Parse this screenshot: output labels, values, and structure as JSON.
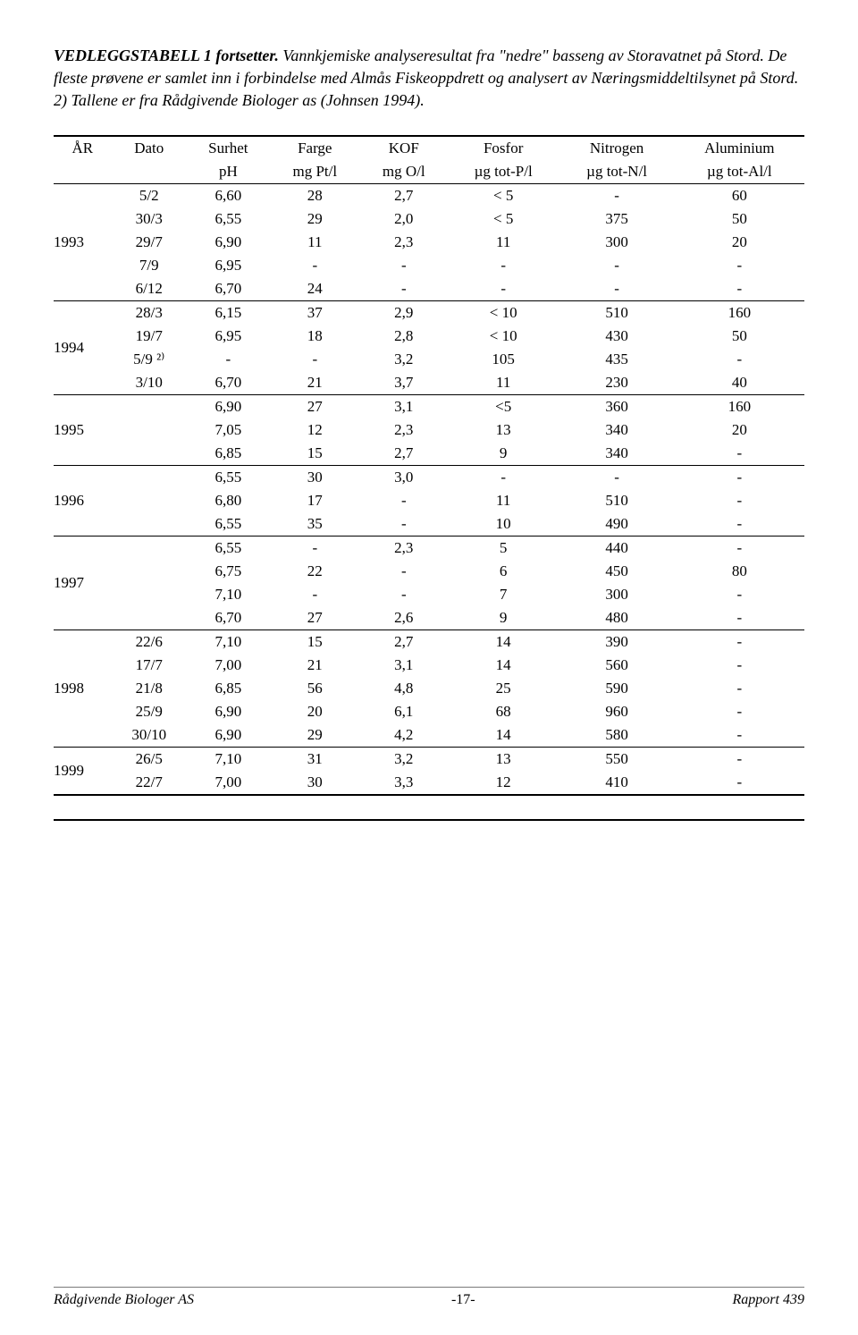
{
  "caption": {
    "title_bold": "VEDLEGGSTABELL 1 fortsetter.",
    "text": " Vannkjemiske analyseresultat fra \"nedre\" basseng av Storavatnet på Stord. De fleste prøvene er samlet inn i forbindelse med Almås Fiskeoppdrett og analysert av Næringsmiddeltilsynet på Stord. 2) Tallene er fra Rådgivende Biologer as (Johnsen 1994)."
  },
  "headers": {
    "row1": [
      "ÅR",
      "Dato",
      "Surhet",
      "Farge",
      "KOF",
      "Fosfor",
      "Nitrogen",
      "Aluminium"
    ],
    "row2": [
      "",
      "",
      "pH",
      "mg Pt/l",
      "mg O/l",
      "µg tot-P/l",
      "µg tot-N/l",
      "µg tot-Al/l"
    ]
  },
  "yearGroups": [
    {
      "year": "1993",
      "rows": [
        {
          "dato": "5/2",
          "ph": "6,60",
          "farge": "28",
          "kof": "2,7",
          "fosfor": "< 5",
          "nitrogen": "-",
          "aluminium": "60"
        },
        {
          "dato": "30/3",
          "ph": "6,55",
          "farge": "29",
          "kof": "2,0",
          "fosfor": "< 5",
          "nitrogen": "375",
          "aluminium": "50"
        },
        {
          "dato": "29/7",
          "ph": "6,90",
          "farge": "11",
          "kof": "2,3",
          "fosfor": "11",
          "nitrogen": "300",
          "aluminium": "20"
        },
        {
          "dato": "7/9",
          "ph": "6,95",
          "farge": "-",
          "kof": "-",
          "fosfor": "-",
          "nitrogen": "-",
          "aluminium": "-"
        },
        {
          "dato": "6/12",
          "ph": "6,70",
          "farge": "24",
          "kof": "-",
          "fosfor": "-",
          "nitrogen": "-",
          "aluminium": "-"
        }
      ]
    },
    {
      "year": "1994",
      "rows": [
        {
          "dato": "28/3",
          "ph": "6,15",
          "farge": "37",
          "kof": "2,9",
          "fosfor": "< 10",
          "nitrogen": "510",
          "aluminium": "160"
        },
        {
          "dato": "19/7",
          "ph": "6,95",
          "farge": "18",
          "kof": "2,8",
          "fosfor": "< 10",
          "nitrogen": "430",
          "aluminium": "50"
        },
        {
          "dato": "5/9 ²⁾",
          "ph": "-",
          "farge": "-",
          "kof": "3,2",
          "fosfor": "105",
          "nitrogen": "435",
          "aluminium": "-"
        },
        {
          "dato": "3/10",
          "ph": "6,70",
          "farge": "21",
          "kof": "3,7",
          "fosfor": "11",
          "nitrogen": "230",
          "aluminium": "40"
        }
      ]
    },
    {
      "year": "1995",
      "rows": [
        {
          "dato": "",
          "ph": "6,90",
          "farge": "27",
          "kof": "3,1",
          "fosfor": "<5",
          "nitrogen": "360",
          "aluminium": "160"
        },
        {
          "dato": "",
          "ph": "7,05",
          "farge": "12",
          "kof": "2,3",
          "fosfor": "13",
          "nitrogen": "340",
          "aluminium": "20"
        },
        {
          "dato": "",
          "ph": "6,85",
          "farge": "15",
          "kof": "2,7",
          "fosfor": "9",
          "nitrogen": "340",
          "aluminium": "-"
        }
      ]
    },
    {
      "year": "1996",
      "rows": [
        {
          "dato": "",
          "ph": "6,55",
          "farge": "30",
          "kof": "3,0",
          "fosfor": "-",
          "nitrogen": "-",
          "aluminium": "-"
        },
        {
          "dato": "",
          "ph": "6,80",
          "farge": "17",
          "kof": "-",
          "fosfor": "11",
          "nitrogen": "510",
          "aluminium": "-"
        },
        {
          "dato": "",
          "ph": "6,55",
          "farge": "35",
          "kof": "-",
          "fosfor": "10",
          "nitrogen": "490",
          "aluminium": "-"
        }
      ]
    },
    {
      "year": "1997",
      "rows": [
        {
          "dato": "",
          "ph": "6,55",
          "farge": "-",
          "kof": "2,3",
          "fosfor": "5",
          "nitrogen": "440",
          "aluminium": "-"
        },
        {
          "dato": "",
          "ph": "6,75",
          "farge": "22",
          "kof": "-",
          "fosfor": "6",
          "nitrogen": "450",
          "aluminium": "80"
        },
        {
          "dato": "",
          "ph": "7,10",
          "farge": "-",
          "kof": "-",
          "fosfor": "7",
          "nitrogen": "300",
          "aluminium": "-"
        },
        {
          "dato": "",
          "ph": "6,70",
          "farge": "27",
          "kof": "2,6",
          "fosfor": "9",
          "nitrogen": "480",
          "aluminium": "-"
        }
      ]
    },
    {
      "year": "1998",
      "rows": [
        {
          "dato": "22/6",
          "ph": "7,10",
          "farge": "15",
          "kof": "2,7",
          "fosfor": "14",
          "nitrogen": "390",
          "aluminium": "-"
        },
        {
          "dato": "17/7",
          "ph": "7,00",
          "farge": "21",
          "kof": "3,1",
          "fosfor": "14",
          "nitrogen": "560",
          "aluminium": "-"
        },
        {
          "dato": "21/8",
          "ph": "6,85",
          "farge": "56",
          "kof": "4,8",
          "fosfor": "25",
          "nitrogen": "590",
          "aluminium": "-"
        },
        {
          "dato": "25/9",
          "ph": "6,90",
          "farge": "20",
          "kof": "6,1",
          "fosfor": "68",
          "nitrogen": "960",
          "aluminium": "-"
        },
        {
          "dato": "30/10",
          "ph": "6,90",
          "farge": "29",
          "kof": "4,2",
          "fosfor": "14",
          "nitrogen": "580",
          "aluminium": "-"
        }
      ]
    },
    {
      "year": "1999",
      "rows": [
        {
          "dato": "26/5",
          "ph": "7,10",
          "farge": "31",
          "kof": "3,2",
          "fosfor": "13",
          "nitrogen": "550",
          "aluminium": "-"
        },
        {
          "dato": "22/7",
          "ph": "7,00",
          "farge": "30",
          "kof": "3,3",
          "fosfor": "12",
          "nitrogen": "410",
          "aluminium": "-"
        }
      ]
    }
  ],
  "footer": {
    "left": "Rådgivende Biologer AS",
    "center": "-17-",
    "right": "Rapport 439"
  }
}
